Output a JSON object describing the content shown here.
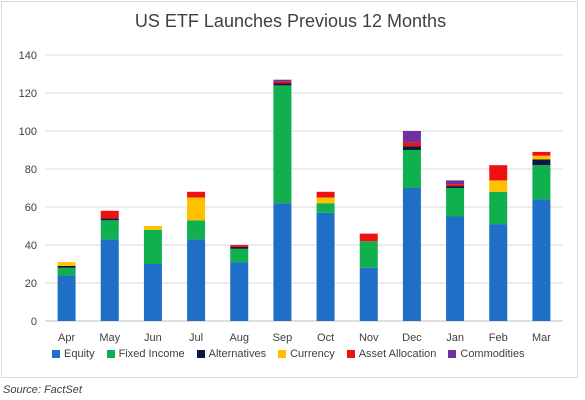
{
  "chart_data": {
    "type": "bar",
    "stacked": true,
    "title": "US ETF Launches Previous 12 Months",
    "xlabel": "",
    "ylabel": "",
    "ylim": [
      0,
      140
    ],
    "yticks": [
      0,
      20,
      40,
      60,
      80,
      100,
      120,
      140
    ],
    "grid": true,
    "legend_position": "bottom",
    "categories": [
      "Apr",
      "May",
      "Jun",
      "Jul",
      "Aug",
      "Sep",
      "Oct",
      "Nov",
      "Dec",
      "Jan",
      "Feb",
      "Mar"
    ],
    "series": [
      {
        "name": "Equity",
        "color": "#1f6fc6",
        "values": [
          24,
          43,
          30,
          43,
          31,
          62,
          57,
          28,
          70,
          55,
          51,
          64
        ]
      },
      {
        "name": "Fixed Income",
        "color": "#10b04f",
        "values": [
          4,
          10,
          18,
          10,
          7,
          62,
          5,
          14,
          20,
          15,
          17,
          18
        ]
      },
      {
        "name": "Alternatives",
        "color": "#0d1a40",
        "values": [
          1,
          1,
          0,
          0,
          1,
          1,
          0,
          0,
          2,
          1,
          0,
          3
        ]
      },
      {
        "name": "Currency",
        "color": "#ffc000",
        "values": [
          2,
          0,
          2,
          12,
          0,
          0,
          3,
          0,
          0,
          0,
          6,
          2
        ]
      },
      {
        "name": "Asset Allocation",
        "color": "#ee1111",
        "values": [
          0,
          4,
          0,
          3,
          1,
          1,
          3,
          4,
          2,
          1,
          8,
          2
        ]
      },
      {
        "name": "Commodities",
        "color": "#7030a0",
        "values": [
          0,
          0,
          0,
          0,
          0,
          1,
          0,
          0,
          6,
          2,
          0,
          0
        ]
      }
    ]
  },
  "source": "Source: FactSet"
}
